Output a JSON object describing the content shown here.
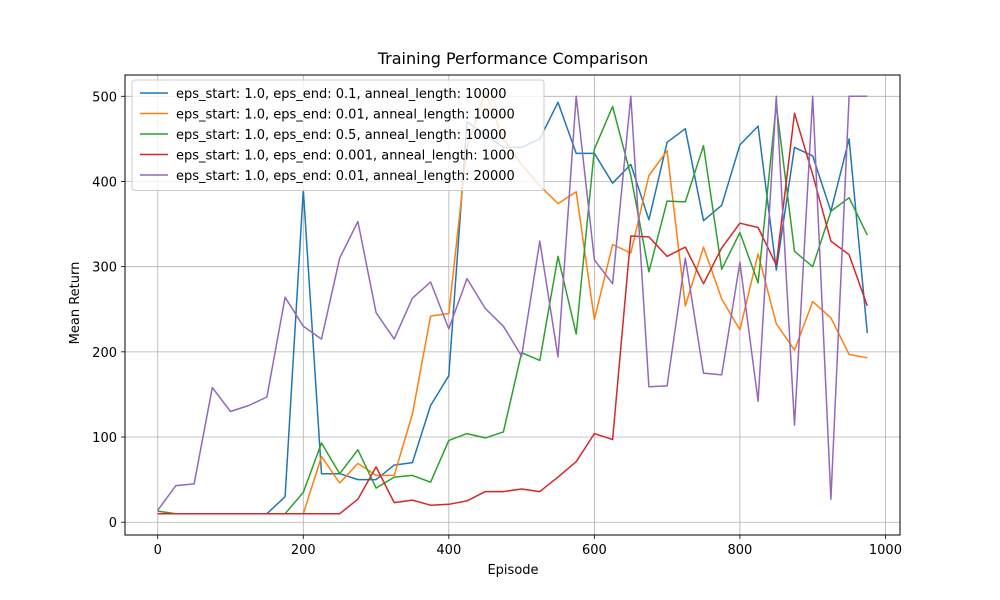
{
  "chart_data": {
    "type": "line",
    "title": "Training Performance Comparison",
    "xlabel": "Episode",
    "ylabel": "Mean Return",
    "xlim": [
      -45,
      1020
    ],
    "ylim": [
      -15,
      525
    ],
    "xticks": [
      0,
      200,
      400,
      600,
      800,
      1000
    ],
    "yticks": [
      0,
      100,
      200,
      300,
      400,
      500
    ],
    "grid": true,
    "legend_position": "upper-left",
    "x": [
      0,
      25,
      50,
      75,
      100,
      125,
      150,
      175,
      200,
      225,
      250,
      275,
      300,
      325,
      350,
      375,
      400,
      425,
      450,
      475,
      500,
      525,
      550,
      575,
      600,
      625,
      650,
      675,
      700,
      725,
      750,
      775,
      800,
      825,
      850,
      875,
      900,
      925,
      950,
      975
    ],
    "series": [
      {
        "name": "eps_start: 1.0, eps_end: 0.1, anneal_length: 10000",
        "color": "#1f77b4",
        "values": [
          10,
          10,
          10,
          10,
          10,
          10,
          10,
          30,
          390,
          57,
          57,
          50,
          50,
          67,
          70,
          137,
          172,
          470,
          455,
          440,
          440,
          450,
          493,
          433,
          433,
          398,
          420,
          355,
          446,
          462,
          354,
          372,
          443,
          465,
          296,
          440,
          430,
          365,
          450,
          222
        ]
      },
      {
        "name": "eps_start: 1.0, eps_end: 0.01, anneal_length: 10000",
        "color": "#ff7f0e",
        "values": [
          10,
          10,
          10,
          10,
          10,
          10,
          10,
          10,
          10,
          77,
          46,
          69,
          55,
          55,
          127,
          242,
          245,
          440,
          505,
          450,
          420,
          395,
          374,
          388,
          238,
          326,
          316,
          407,
          436,
          254,
          323,
          262,
          226,
          315,
          233,
          202,
          259,
          240,
          197,
          193
        ]
      },
      {
        "name": "eps_start: 1.0, eps_end: 0.5, anneal_length: 10000",
        "color": "#2ca02c",
        "values": [
          13,
          10,
          10,
          10,
          10,
          10,
          10,
          10,
          35,
          93,
          57,
          85,
          40,
          53,
          55,
          47,
          96,
          104,
          99,
          106,
          199,
          190,
          312,
          221,
          438,
          488,
          407,
          294,
          377,
          376,
          442,
          297,
          340,
          281,
          490,
          318,
          300,
          365,
          381,
          337
        ]
      },
      {
        "name": "eps_start: 1.0, eps_end: 0.001, anneal_length: 1000",
        "color": "#d62728",
        "values": [
          10,
          10,
          10,
          10,
          10,
          10,
          10,
          10,
          10,
          10,
          10,
          27,
          65,
          23,
          26,
          20,
          21,
          25,
          36,
          36,
          39,
          36,
          53,
          71,
          104,
          97,
          336,
          335,
          312,
          323,
          280,
          322,
          351,
          346,
          302,
          480,
          408,
          330,
          314,
          254
        ]
      },
      {
        "name": "eps_start: 1.0, eps_end: 0.01, anneal_length: 20000",
        "color": "#9467bd",
        "values": [
          14,
          43,
          45,
          158,
          130,
          137,
          147,
          264,
          230,
          215,
          310,
          353,
          246,
          215,
          263,
          282,
          227,
          286,
          251,
          230,
          195,
          330,
          194,
          500,
          308,
          280,
          500,
          159,
          160,
          310,
          175,
          173,
          305,
          142,
          500,
          114,
          500,
          27,
          500,
          500
        ]
      }
    ]
  }
}
